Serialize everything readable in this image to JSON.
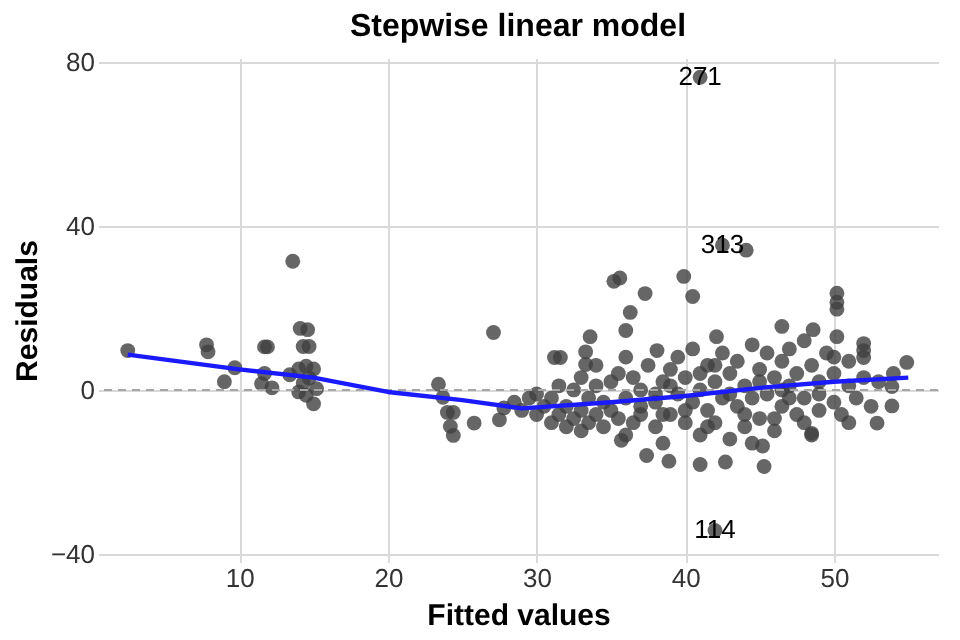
{
  "chart_data": {
    "type": "scatter",
    "title": "Stepwise linear model",
    "xlabel": "Fitted values",
    "ylabel": "Residuals",
    "xlim": [
      0.5,
      57
    ],
    "ylim": [
      -42,
      81
    ],
    "xticks": [
      10,
      20,
      30,
      40,
      50
    ],
    "yticks": [
      -40,
      0,
      40,
      80
    ],
    "grid": true,
    "marker": "circle",
    "series": [
      {
        "type": "scatter",
        "color": "#404040",
        "x": [
          2.5,
          7.8,
          7.9,
          9,
          9.7,
          11.7,
          11.9,
          11.7,
          11.5,
          12.2,
          13.6,
          14.1,
          14.6,
          14.3,
          14.7,
          13.4,
          14.0,
          14.5,
          15.0,
          14.7,
          14.0,
          14.5,
          15.0,
          14.3,
          15.2,
          23.4,
          23.7,
          24.0,
          24.4,
          24.2,
          24.4,
          25.8,
          27.1,
          27.5,
          27.8,
          41.0,
          42.5,
          44.1,
          42.0,
          35.2,
          35.6,
          39.9,
          40.5,
          37.3,
          36.3,
          36.0,
          50.2,
          50.2,
          50.2,
          50.2,
          54.9,
          46.5,
          48.6,
          52.0,
          52.0,
          52.0,
          33.6,
          33.3,
          33.3,
          31.2,
          31.6,
          38.1,
          42.1,
          37.4,
          38.9,
          41.0,
          42.7,
          45.3,
          45.2,
          35.7,
          52.9,
          53.9,
          53.9,
          48.5,
          28.5,
          29,
          29.5,
          30,
          30.5,
          31,
          31,
          31.5,
          32,
          32,
          32.5,
          32.5,
          33,
          33,
          33.5,
          33.5,
          34,
          34,
          34.5,
          34.5,
          35,
          35,
          35.5,
          35.5,
          36,
          36,
          36.5,
          37,
          37,
          37.5,
          38,
          38,
          38.5,
          38.5,
          39,
          39,
          39.5,
          39.5,
          40,
          40,
          40.5,
          40.5,
          41,
          41,
          41.5,
          41.5,
          42,
          42,
          42.5,
          42.5,
          43,
          43,
          43.5,
          43.5,
          44,
          44,
          44.5,
          44.5,
          45,
          45,
          45.5,
          45.5,
          46,
          46,
          46.5,
          46.5,
          47,
          47,
          47.5,
          47.5,
          48,
          48,
          48.5,
          49,
          49,
          49.5,
          50,
          50,
          50.5,
          51,
          51,
          51.5,
          52,
          52.5,
          53,
          54,
          30,
          31.5,
          33,
          34,
          36,
          37,
          38,
          39,
          40,
          41,
          42,
          43,
          44,
          45,
          46,
          47,
          48,
          49,
          50,
          51,
          36.5,
          38.5,
          41.5,
          44.5,
          46.5,
          48.5
        ],
        "values": [
          9.6,
          11,
          9.3,
          2,
          5.4,
          10.5,
          10.5,
          4,
          1.5,
          0.5,
          31.4,
          15,
          14.7,
          10.6,
          10.6,
          3.7,
          5.1,
          5.8,
          5.1,
          2.9,
          -0.5,
          -1.3,
          -3.4,
          1.7,
          0.3,
          1.4,
          -1.8,
          -5.5,
          -5.5,
          -8.9,
          -11.1,
          -8.1,
          14,
          -7.3,
          -4.4,
          76.3,
          35.3,
          34.1,
          -34.3,
          26.5,
          27.3,
          27.7,
          22.8,
          23.5,
          18.9,
          14.5,
          23.6,
          21.4,
          19.7,
          13,
          6.7,
          15.5,
          14.7,
          11.3,
          9.6,
          7.9,
          13,
          9.3,
          6.2,
          7.9,
          7.9,
          9.6,
          13,
          -16,
          -17.4,
          -18.2,
          -17.6,
          -18.7,
          -13.7,
          -12.3,
          -8.1,
          -3.9,
          0.8,
          -10.6,
          -3,
          -5,
          -2,
          -6,
          -4,
          -8,
          -2,
          -6,
          -9,
          -4,
          -7,
          0,
          -10,
          -5,
          -8,
          -2,
          -6,
          1,
          -9,
          -3,
          -5,
          2,
          -7,
          4,
          -2,
          -11,
          3,
          -6,
          0,
          6,
          -3,
          -9,
          2,
          -13,
          5,
          -6,
          -1,
          8,
          3,
          -8,
          -3,
          10,
          0,
          -11,
          6,
          -5,
          2,
          -8,
          -2,
          9,
          4,
          -12,
          -4,
          7,
          1,
          -9,
          11,
          -2,
          5,
          -7,
          -1,
          9,
          3,
          -10,
          7,
          -4,
          1,
          10,
          -6,
          4,
          -2,
          12,
          6,
          -5,
          2,
          9,
          -3,
          4,
          -6,
          1,
          7,
          -2,
          3,
          -4,
          2,
          4,
          -1,
          1,
          3,
          6,
          8,
          -4,
          -1,
          1,
          -5,
          4,
          6,
          -1,
          -6,
          2,
          -7,
          -2,
          -8,
          -1,
          8,
          -8,
          -8,
          -6,
          -9,
          -13,
          0,
          -11
        ]
      },
      {
        "type": "line",
        "color": "#1a1aff",
        "line_style": "solid",
        "marker": "none",
        "x": [
          2.5,
          10,
          15,
          20,
          25,
          29,
          35,
          40,
          45,
          50,
          55
        ],
        "values": [
          8.6,
          5,
          3,
          -0.5,
          -2.5,
          -4.5,
          -3,
          -1.5,
          0.5,
          2,
          3
        ]
      }
    ],
    "ref_lines": [
      {
        "axis": "y",
        "value": 0,
        "color": "#a6a6a6",
        "line_style": "dashed"
      }
    ],
    "annotations": [
      {
        "text": "271",
        "x": 41.0,
        "y": 76.3
      },
      {
        "text": "313",
        "x": 42.5,
        "y": 35.3
      },
      {
        "text": "114",
        "x": 42.0,
        "y": -34.3
      }
    ]
  }
}
